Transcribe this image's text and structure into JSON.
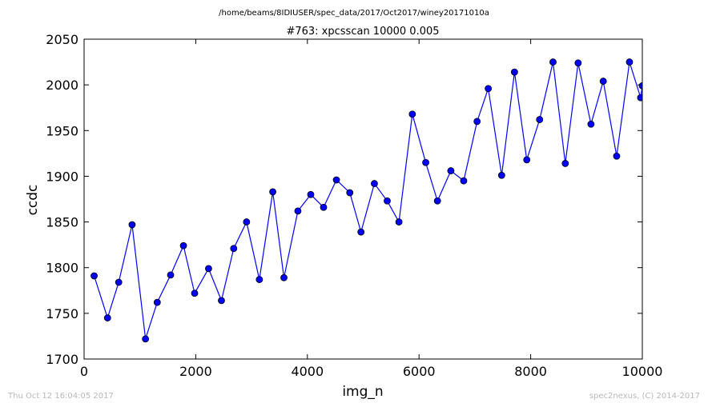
{
  "suptitle": "/home/beams/8IDIUSER/spec_data/2017/Oct2017/winey20171010a",
  "footer": {
    "timestamp": "Thu Oct 12 16:04:05 2017",
    "credit": "spec2nexus, (C) 2014-2017"
  },
  "colors": {
    "series": "#0000ff",
    "marker_edge": "#000000",
    "footer": "#b8b8b8"
  },
  "chart_data": {
    "type": "line",
    "title": "#763: xpcsscan 10000 0.005",
    "xlabel": "img_n",
    "ylabel": "ccdc",
    "xlim": [
      0,
      10000
    ],
    "ylim": [
      1700,
      2050
    ],
    "xticks": [
      0,
      2000,
      4000,
      6000,
      8000,
      10000
    ],
    "yticks": [
      1700,
      1750,
      1800,
      1850,
      1900,
      1950,
      2000,
      2050
    ],
    "grid": false,
    "markers": "circle",
    "series": [
      {
        "x": [
          180,
          420,
          620,
          860,
          1100,
          1310,
          1550,
          1780,
          1980,
          2230,
          2460,
          2680,
          2910,
          3140,
          3380,
          3580,
          3830,
          4060,
          4290,
          4520,
          4760,
          4960,
          5200,
          5430,
          5640,
          5880,
          6120,
          6330,
          6570,
          6800,
          7040,
          7240,
          7480,
          7710,
          7930,
          8160,
          8400,
          8620,
          8850,
          9080,
          9300,
          9540,
          9770,
          9970,
          10000
        ],
        "y": [
          1791,
          1745,
          1784,
          1847,
          1722,
          1762,
          1792,
          1824,
          1772,
          1799,
          1764,
          1821,
          1850,
          1787,
          1883,
          1789,
          1862,
          1880,
          1866,
          1896,
          1882,
          1839,
          1892,
          1873,
          1850,
          1968,
          1915,
          1873,
          1906,
          1895,
          1960,
          1996,
          1901,
          2014,
          1918,
          1962,
          2025,
          1914,
          2024,
          1957,
          2004,
          1922,
          2025,
          1986,
          1999
        ]
      }
    ]
  }
}
